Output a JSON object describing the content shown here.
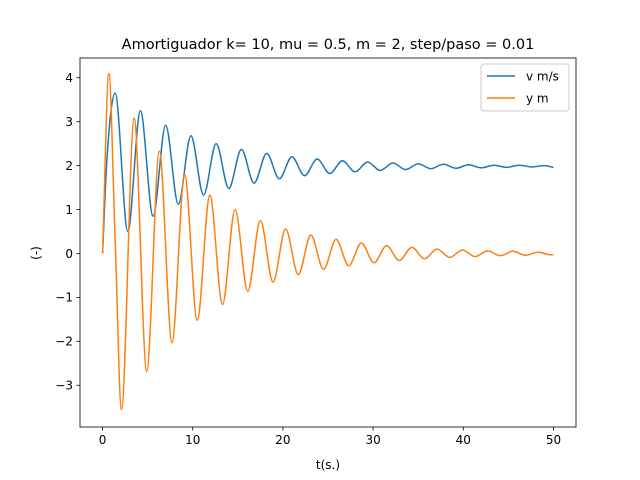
{
  "chart_data": {
    "type": "line",
    "title": "Amortiguador k= 10, mu = 0.5, m = 2, step/paso = 0.01",
    "xlabel": "t(s.)",
    "ylabel": "(-)",
    "xlim": [
      -2.5,
      52.5
    ],
    "ylim": [
      -3.95,
      4.45
    ],
    "x_ticks": [
      0,
      10,
      20,
      30,
      40,
      50
    ],
    "y_ticks": [
      -3,
      -2,
      -1,
      0,
      1,
      2,
      3,
      4
    ],
    "x_tick_labels": [
      "0",
      "10",
      "20",
      "30",
      "40",
      "50"
    ],
    "y_tick_labels": [
      "−3",
      "−2",
      "−1",
      "0",
      "1",
      "2",
      "3",
      "4"
    ],
    "grid": false,
    "legend_position": "top-right",
    "series": [
      {
        "name": "v m/s",
        "color": "#1f77b4",
        "x": [
          0,
          0.5,
          1.4,
          2.8,
          4.2,
          5.6,
          7.0,
          8.4,
          9.8,
          11.2,
          12.6,
          14.0,
          15.4,
          16.8,
          18.2,
          19.6,
          21.0,
          22.4,
          23.8,
          25.2,
          26.6,
          28.0,
          29.4,
          30.8,
          32.2,
          33.6,
          35.0,
          36.4,
          37.8,
          39.2,
          40.6,
          42.0,
          43.4,
          44.8,
          46.2,
          47.6,
          49.0,
          50.0
        ],
        "y": [
          0,
          2.2,
          3.65,
          0.5,
          3.25,
          0.85,
          2.92,
          1.12,
          2.68,
          1.33,
          2.5,
          1.48,
          2.37,
          1.6,
          2.28,
          1.7,
          2.2,
          1.77,
          2.15,
          1.82,
          2.11,
          1.86,
          2.08,
          1.89,
          2.06,
          1.91,
          2.04,
          1.93,
          2.03,
          1.94,
          2.02,
          1.95,
          2.01,
          1.96,
          2.01,
          1.97,
          2.0,
          1.96
        ]
      },
      {
        "name": "y m",
        "color": "#ff7f0e",
        "x": [
          0,
          0.7,
          1.4,
          2.1,
          3.5,
          4.9,
          6.3,
          7.7,
          9.1,
          10.5,
          11.9,
          13.3,
          14.7,
          16.1,
          17.5,
          18.9,
          20.3,
          21.7,
          23.1,
          24.5,
          25.9,
          27.3,
          28.7,
          30.1,
          31.5,
          32.9,
          34.3,
          35.7,
          37.1,
          38.5,
          39.9,
          41.3,
          42.7,
          44.1,
          45.5,
          46.9,
          48.3,
          49.7,
          50.0
        ],
        "y": [
          0,
          4.1,
          0.3,
          -3.55,
          3.08,
          -2.68,
          2.33,
          -2.03,
          1.8,
          -1.52,
          1.33,
          -1.16,
          1.0,
          -0.86,
          0.75,
          -0.65,
          0.56,
          -0.48,
          0.42,
          -0.36,
          0.32,
          -0.28,
          0.24,
          -0.21,
          0.18,
          -0.16,
          0.14,
          -0.12,
          0.1,
          -0.09,
          0.08,
          -0.07,
          0.06,
          -0.05,
          0.05,
          -0.04,
          0.03,
          -0.03,
          -0.03
        ]
      }
    ]
  }
}
